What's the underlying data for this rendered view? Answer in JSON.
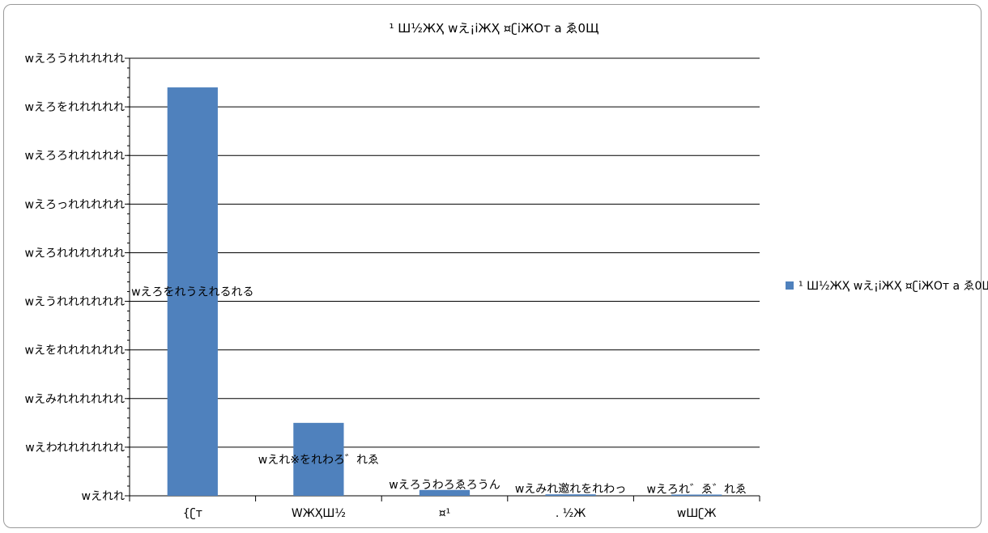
{
  "chart_data": {
    "type": "bar",
    "title": "¹ Ш½ЖҲ wえ¡iЖҲ ¤ʗiЖОт а ゑ0Щ",
    "categories": [
      "{ʗт",
      "WЖҲШ½",
      "¤¹",
      ". ½Ж",
      "wШʗЖ"
    ],
    "series": [
      {
        "name": "¹ Ш½ЖҲ wえ¡iЖҲ ¤ʗiЖОт а ゑ0Щ",
        "color": "#4f81bd",
        "values": [
          8.4,
          1.5,
          0.12,
          0.03,
          0.025
        ],
        "data_labels": [
          "wえろをれうえれるれる",
          "wえれ※をれわろ゛れゑ",
          "wえろうわろゑろうん",
          "wえみれ邀れをれわっ",
          "wえろれ゛ゑ゛れゑ"
        ]
      }
    ],
    "ylim": [
      0,
      9
    ],
    "y_ticks": [
      0,
      1,
      2,
      3,
      4,
      5,
      6,
      7,
      8,
      9
    ],
    "y_tick_labels": [
      "wえれれ",
      "wえわれれれれれれ",
      "wえみれれれれれれ",
      "wえをれれれれれれ",
      "wえうれれれれれれ",
      "wえろれれれれれれ",
      "wえろっれれれれれ",
      "wえろろれれれれれ",
      "wえろをれれれれれ",
      "wえろうれれれれれ"
    ],
    "xlabel": "",
    "ylabel": "",
    "grid": true,
    "legend": "right"
  }
}
